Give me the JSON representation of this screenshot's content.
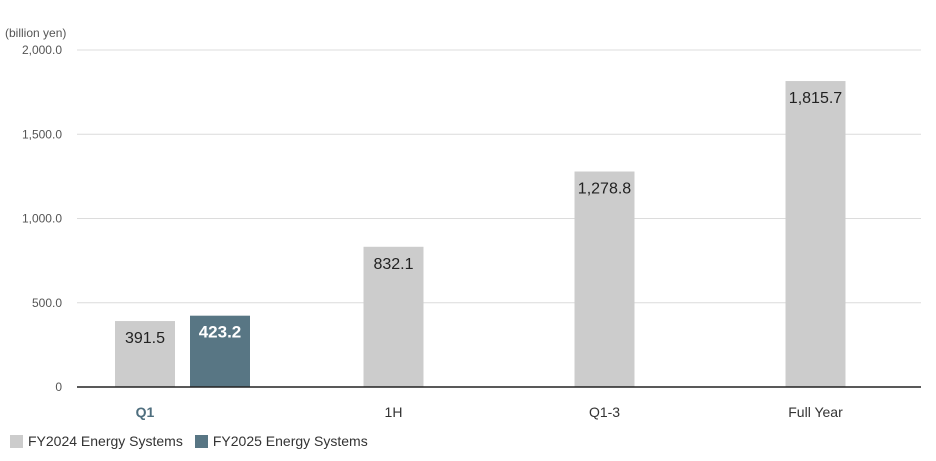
{
  "chart_data": {
    "type": "bar",
    "unit_label": "(billion yen)",
    "categories": [
      "Q1",
      "1H",
      "Q1-3",
      "Full Year"
    ],
    "highlighted_category": "Q1",
    "series": [
      {
        "name": "FY2024 Energy Systems",
        "color": "#cccccc",
        "values": [
          391.5,
          832.1,
          1278.8,
          1815.7
        ],
        "labels": [
          "391.5",
          "832.1",
          "1,278.8",
          "1,815.7"
        ]
      },
      {
        "name": "FY2025 Energy Systems",
        "color": "#587684",
        "values": [
          423.2,
          null,
          null,
          null
        ],
        "labels": [
          "423.2",
          null,
          null,
          null
        ]
      }
    ],
    "ylim": [
      0,
      2000
    ],
    "yticks": [
      0,
      500,
      1000,
      1500,
      2000
    ],
    "ytick_labels": [
      "0",
      "500.0",
      "1,000.0",
      "1,500.0",
      "2,000.0"
    ],
    "grid": true,
    "legend_position": "bottom-left"
  }
}
